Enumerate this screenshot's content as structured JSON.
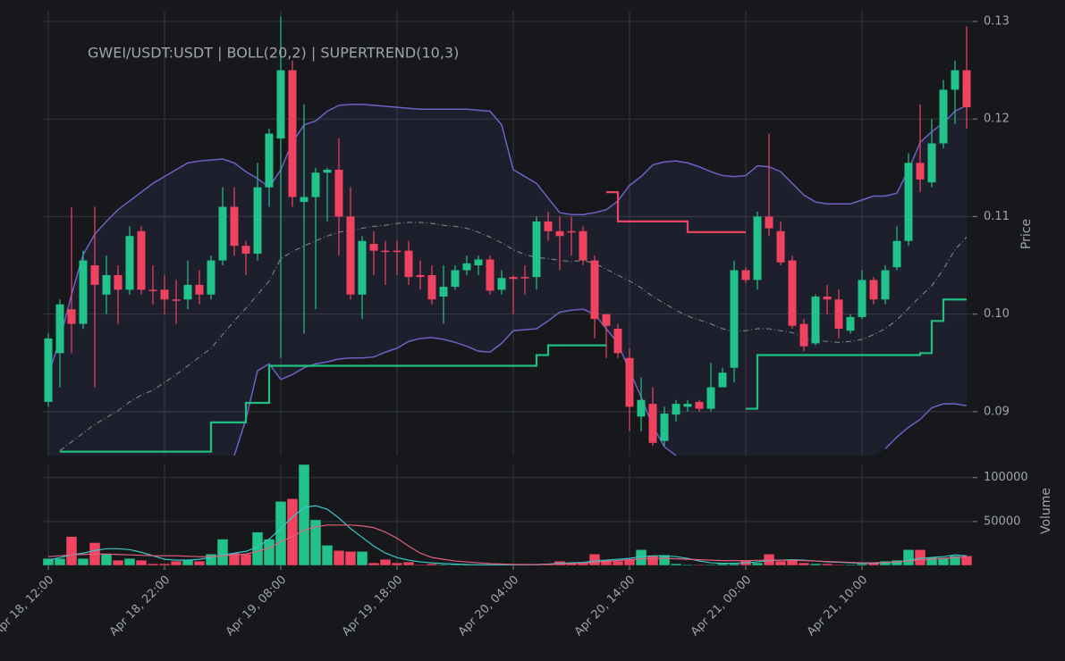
{
  "chart_data": {
    "type": "candlestick",
    "title": "GWEI/USDT:USDT | BOLL(20,2) | SUPERTREND(10,3)",
    "y_label": "Price",
    "y2_label": "Volume",
    "x": [
      "Apr 18, 12:00",
      null,
      null,
      null,
      null,
      null,
      null,
      null,
      null,
      null,
      "Apr 18, 22:00",
      null,
      null,
      null,
      null,
      null,
      null,
      null,
      null,
      null,
      "Apr 19, 08:00",
      null,
      null,
      null,
      null,
      null,
      null,
      null,
      null,
      null,
      "Apr 19, 18:00",
      null,
      null,
      null,
      null,
      null,
      null,
      null,
      null,
      null,
      "Apr 20, 04:00",
      null,
      null,
      null,
      null,
      null,
      null,
      null,
      null,
      null,
      "Apr 20, 14:00",
      null,
      null,
      null,
      null,
      null,
      null,
      null,
      null,
      null,
      "Apr 21, 00:00",
      null,
      null,
      null,
      null,
      null,
      null,
      null,
      null,
      null,
      "Apr 21, 10:00",
      null,
      null,
      null,
      null,
      null,
      null,
      null,
      null,
      null
    ],
    "open": [
      0.091,
      0.096,
      0.1005,
      0.099,
      0.105,
      0.102,
      0.104,
      0.1025,
      0.1085,
      0.1025,
      0.1025,
      0.1015,
      0.1015,
      0.103,
      0.102,
      0.1055,
      0.111,
      0.107,
      0.1062,
      0.113,
      0.118,
      0.125,
      0.1115,
      0.112,
      0.1145,
      0.1148,
      0.11,
      0.102,
      0.1072,
      0.1065,
      0.1065,
      0.1065,
      0.104,
      0.104,
      0.1018,
      0.1028,
      0.1045,
      0.105,
      0.1056,
      0.1025,
      0.1038,
      0.1038,
      0.1038,
      0.1095,
      0.1085,
      0.1085,
      0.1085,
      0.1055,
      0.1,
      0.0985,
      0.0955,
      0.0895,
      0.0908,
      0.087,
      0.0897,
      0.0905,
      0.091,
      0.0903,
      0.0925,
      0.0945,
      0.1045,
      0.1035,
      0.11,
      0.1085,
      0.1055,
      0.099,
      0.097,
      0.1018,
      0.1015,
      0.0983,
      0.0997,
      0.1035,
      0.1015,
      0.1048,
      0.1075,
      0.1155,
      0.1135,
      0.1175,
      0.123,
      0.125
    ],
    "high": [
      0.098,
      0.1015,
      0.111,
      0.1065,
      0.111,
      0.106,
      0.105,
      0.109,
      0.109,
      0.105,
      0.104,
      0.1035,
      0.1055,
      0.1045,
      0.106,
      0.113,
      0.113,
      0.1075,
      0.1155,
      0.119,
      0.1305,
      0.126,
      0.1215,
      0.115,
      0.115,
      0.118,
      0.113,
      0.108,
      0.1085,
      0.1075,
      0.1075,
      0.1075,
      0.1055,
      0.105,
      0.105,
      0.105,
      0.106,
      0.106,
      0.106,
      0.1045,
      0.104,
      0.105,
      0.11,
      0.1105,
      0.11,
      0.11,
      0.109,
      0.106,
      0.1,
      0.099,
      0.0965,
      0.0935,
      0.0925,
      0.0905,
      0.0912,
      0.0912,
      0.0912,
      0.095,
      0.0945,
      0.1055,
      0.1048,
      0.1105,
      0.1185,
      0.1095,
      0.106,
      0.0995,
      0.102,
      0.103,
      0.1025,
      0.1,
      0.1045,
      0.1038,
      0.105,
      0.109,
      0.1165,
      0.1215,
      0.12,
      0.124,
      0.126,
      0.1295
    ],
    "low": [
      0.0905,
      0.0925,
      0.096,
      0.0985,
      0.0925,
      0.1,
      0.099,
      0.102,
      0.102,
      0.101,
      0.1,
      0.099,
      0.1005,
      0.101,
      0.1015,
      0.105,
      0.106,
      0.104,
      0.1055,
      0.111,
      0.0955,
      0.111,
      0.098,
      0.1005,
      0.1095,
      0.106,
      0.1015,
      0.0995,
      0.104,
      0.103,
      0.104,
      0.103,
      0.1025,
      0.101,
      0.099,
      0.1025,
      0.104,
      0.104,
      0.102,
      0.102,
      0.1,
      0.102,
      0.1025,
      0.1075,
      0.1045,
      0.106,
      0.105,
      0.0975,
      0.0955,
      0.0955,
      0.088,
      0.088,
      0.0865,
      0.0865,
      0.089,
      0.09,
      0.09,
      0.09,
      0.0925,
      0.093,
      0.1032,
      0.1025,
      0.108,
      0.105,
      0.0985,
      0.0962,
      0.0968,
      0.1,
      0.0975,
      0.098,
      0.0995,
      0.101,
      0.101,
      0.1045,
      0.107,
      0.1125,
      0.113,
      0.117,
      0.1195,
      0.119
    ],
    "close": [
      0.0975,
      0.101,
      0.099,
      0.1055,
      0.103,
      0.104,
      0.1025,
      0.108,
      0.1025,
      0.1025,
      0.1015,
      0.1015,
      0.103,
      0.102,
      0.1055,
      0.111,
      0.107,
      0.1062,
      0.113,
      0.1185,
      0.125,
      0.112,
      0.112,
      0.1145,
      0.1148,
      0.11,
      0.102,
      0.1075,
      0.1065,
      0.1065,
      0.1065,
      0.1038,
      0.1038,
      0.1015,
      0.1028,
      0.1045,
      0.1052,
      0.1056,
      0.1024,
      0.1037,
      0.1036,
      0.1038,
      0.1095,
      0.1085,
      0.108,
      0.1085,
      0.1055,
      0.0995,
      0.0988,
      0.096,
      0.0905,
      0.0912,
      0.0868,
      0.0898,
      0.0908,
      0.0908,
      0.0903,
      0.0925,
      0.094,
      0.1045,
      0.1035,
      0.11,
      0.1088,
      0.1053,
      0.0988,
      0.0967,
      0.1018,
      0.1015,
      0.0985,
      0.0997,
      0.1035,
      0.1015,
      0.1045,
      0.1075,
      0.1155,
      0.1138,
      0.1175,
      0.123,
      0.125,
      0.1212
    ],
    "up_color": "#22c38a",
    "down_color": "#ef4360",
    "bollinger": {
      "color": "#7060c8",
      "middle_color": "#8a8a8a",
      "upper": [
        0.0938,
        0.0974,
        0.102,
        0.1061,
        0.1082,
        0.1095,
        0.1107,
        0.1116,
        0.1125,
        0.1134,
        0.1141,
        0.1148,
        0.1155,
        0.1157,
        0.1158,
        0.1159,
        0.1155,
        0.1146,
        0.1139,
        0.113,
        0.1148,
        0.1176,
        0.1194,
        0.1198,
        0.1208,
        0.1214,
        0.1215,
        0.1215,
        0.1214,
        0.1213,
        0.1212,
        0.1211,
        0.121,
        0.121,
        0.121,
        0.121,
        0.121,
        0.1209,
        0.1208,
        0.1194,
        0.1148,
        0.1141,
        0.1134,
        0.1119,
        0.1104,
        0.1102,
        0.1102,
        0.1104,
        0.1107,
        0.1116,
        0.1132,
        0.1141,
        0.1153,
        0.1156,
        0.1157,
        0.1155,
        0.1151,
        0.1146,
        0.1142,
        0.1141,
        0.1142,
        0.1152,
        0.1151,
        0.1146,
        0.1134,
        0.1122,
        0.1115,
        0.1113,
        0.1113,
        0.1113,
        0.1117,
        0.1121,
        0.1121,
        0.1124,
        0.1148,
        0.1176,
        0.1187,
        0.1196,
        0.1208,
        0.1214
      ],
      "middle": [
        null,
        0.086,
        0.0869,
        0.0878,
        0.0887,
        0.0894,
        0.0901,
        0.091,
        0.0917,
        0.0922,
        0.093,
        0.0938,
        0.0947,
        0.0956,
        0.0965,
        0.0979,
        0.0993,
        0.1006,
        0.102,
        0.1034,
        0.1057,
        0.1064,
        0.107,
        0.1075,
        0.108,
        0.1084,
        0.1086,
        0.1088,
        0.109,
        0.1091,
        0.1093,
        0.1094,
        0.1094,
        0.1093,
        0.1091,
        0.109,
        0.1088,
        0.1084,
        0.1079,
        0.1073,
        0.1066,
        0.1061,
        0.1058,
        0.1057,
        0.1055,
        0.1054,
        0.1055,
        0.1052,
        0.1046,
        0.104,
        0.1034,
        0.1027,
        0.1018,
        0.1011,
        0.1004,
        0.0998,
        0.0994,
        0.099,
        0.0985,
        0.0982,
        0.0983,
        0.0985,
        0.0985,
        0.0983,
        0.0981,
        0.0976,
        0.0973,
        0.0972,
        0.0971,
        0.0972,
        0.0974,
        0.0979,
        0.0985,
        0.0994,
        0.1006,
        0.1018,
        0.1029,
        0.1046,
        0.1066,
        0.1079
      ],
      "lower": [
        null,
        null,
        null,
        null,
        null,
        null,
        null,
        null,
        null,
        null,
        null,
        null,
        null,
        null,
        null,
        null,
        0.0855,
        0.0892,
        0.0942,
        0.0949,
        0.0933,
        0.0938,
        0.0945,
        0.0949,
        0.0951,
        0.0954,
        0.0955,
        0.0955,
        0.0956,
        0.0961,
        0.0965,
        0.0972,
        0.0975,
        0.0976,
        0.0974,
        0.0971,
        0.0967,
        0.0962,
        0.0961,
        0.097,
        0.0983,
        0.0984,
        0.0985,
        0.0993,
        0.1002,
        0.1004,
        0.1005,
        0.1,
        0.0985,
        0.097,
        0.0942,
        0.0915,
        0.0885,
        0.0864,
        0.0855,
        null,
        null,
        null,
        null,
        null,
        null,
        null,
        null,
        null,
        null,
        null,
        null,
        null,
        null,
        null,
        null,
        null,
        0.0862,
        0.0874,
        0.0884,
        0.0892,
        0.0904,
        0.0908,
        0.0908,
        0.0906
      ]
    },
    "supertrend": {
      "up_color": "#1fbf80",
      "down_color": "#ea4560",
      "up": [
        null,
        0.0859,
        0.0859,
        0.0859,
        0.0859,
        0.0859,
        0.0859,
        0.0859,
        0.0859,
        0.0859,
        0.0859,
        0.0859,
        0.0859,
        0.0859,
        0.0889,
        0.0889,
        0.0889,
        0.0909,
        0.0909,
        0.0947,
        0.0947,
        0.0947,
        0.0947,
        0.0947,
        0.0947,
        0.0947,
        0.0947,
        0.0947,
        0.0947,
        0.0947,
        0.0947,
        0.0947,
        0.0947,
        0.0947,
        0.0947,
        0.0947,
        0.0947,
        0.0947,
        0.0947,
        0.0947,
        0.0947,
        0.0947,
        0.0958,
        0.0968,
        0.0968,
        0.0968,
        0.0968,
        0.0968,
        0.0968,
        null,
        null,
        null,
        null,
        null,
        null,
        null,
        null,
        null,
        null,
        null,
        0.0903,
        0.0958,
        0.0958,
        0.0958,
        0.0958,
        0.0958,
        0.0958,
        0.0958,
        0.0958,
        0.0958,
        0.0958,
        0.0958,
        0.0958,
        0.0958,
        0.0958,
        0.096,
        0.0993,
        0.1015,
        0.1015,
        0.1015
      ],
      "down": [
        null,
        null,
        null,
        null,
        null,
        null,
        null,
        null,
        null,
        null,
        null,
        null,
        null,
        null,
        null,
        null,
        null,
        null,
        null,
        null,
        null,
        null,
        null,
        null,
        null,
        null,
        null,
        null,
        null,
        null,
        null,
        null,
        null,
        null,
        null,
        null,
        null,
        null,
        null,
        null,
        null,
        null,
        null,
        null,
        null,
        null,
        null,
        null,
        0.1125,
        0.1095,
        0.1095,
        0.1095,
        0.1095,
        0.1095,
        0.1095,
        0.1084,
        0.1084,
        0.1084,
        0.1084,
        0.1084,
        0.1084,
        null,
        null,
        null,
        null,
        null,
        null,
        null,
        null,
        null,
        null,
        null,
        null,
        null,
        null,
        null,
        null,
        null,
        null,
        null
      ]
    },
    "volume": [
      8000,
      8000,
      33000,
      8000,
      26000,
      13000,
      6000,
      8000,
      6000,
      2000,
      2000,
      5000,
      7000,
      5000,
      13000,
      30000,
      14000,
      13000,
      38000,
      30000,
      73000,
      76000,
      115000,
      52000,
      23000,
      17000,
      16000,
      16000,
      3000,
      7000,
      3000,
      4000,
      1000,
      2000,
      1000,
      1000,
      1000,
      500,
      500,
      500,
      500,
      500,
      1000,
      2000,
      5000,
      2000,
      3000,
      13000,
      6000,
      5000,
      7000,
      18000,
      11000,
      12000,
      2000,
      1000,
      1000,
      1000,
      2000,
      2000,
      6000,
      3000,
      13000,
      5000,
      6000,
      3000,
      2000,
      2000,
      1000,
      1000,
      2000,
      3000,
      5000,
      6000,
      18000,
      18000,
      9000,
      9000,
      11000,
      11000
    ],
    "volume_ma": [
      {
        "color": "#3cc8c8",
        "values": [
          6000,
          9000,
          12000,
          14000,
          17000,
          19000,
          19000,
          18000,
          15000,
          11000,
          7000,
          6000,
          6000,
          7000,
          9000,
          12000,
          14000,
          16000,
          21000,
          30000,
          42000,
          55000,
          66000,
          68000,
          64000,
          54000,
          42000,
          32000,
          22000,
          14000,
          9000,
          6000,
          4000,
          3000,
          2000,
          1500,
          1000,
          800,
          700,
          700,
          700,
          800,
          1000,
          1500,
          2500,
          3000,
          3500,
          5000,
          6000,
          7000,
          8000,
          10000,
          11000,
          11000,
          10000,
          8000,
          5000,
          3000,
          2500,
          2500,
          3000,
          4000,
          5500,
          6000,
          6500,
          6000,
          5000,
          4000,
          3500,
          3000,
          2500,
          2500,
          3000,
          3500,
          6000,
          8000,
          9000,
          10000,
          12000,
          11000
        ]
      },
      {
        "color": "#e0607e",
        "values": [
          10000,
          11000,
          12000,
          12500,
          13000,
          13000,
          12500,
          12000,
          11500,
          11000,
          11000,
          11000,
          10500,
          10000,
          10000,
          11000,
          12000,
          13000,
          16000,
          20000,
          27000,
          33000,
          40000,
          44000,
          46000,
          46000,
          46000,
          45000,
          43000,
          38000,
          31000,
          22000,
          14000,
          9000,
          7000,
          5000,
          4000,
          3000,
          2000,
          1500,
          1200,
          1000,
          1000,
          1200,
          1500,
          2000,
          2500,
          3500,
          4500,
          5500,
          6500,
          7500,
          8000,
          8000,
          7500,
          7000,
          6500,
          6000,
          5500,
          5500,
          5500,
          5800,
          6000,
          6000,
          5800,
          5500,
          5000,
          4500,
          4000,
          3500,
          3000,
          3000,
          3500,
          4000,
          5000,
          6000,
          7000,
          8000,
          9000,
          9500
        ]
      }
    ],
    "ylim": [
      0.0855,
      0.1311
    ],
    "yticks": [
      0.09,
      {
        "value": 0.1,
        "label": "0.10"
      },
      0.11,
      0.12,
      0.13
    ],
    "y2lim": [
      0,
      116000
    ],
    "y2ticks": [
      50000,
      100000
    ],
    "grid": true
  }
}
